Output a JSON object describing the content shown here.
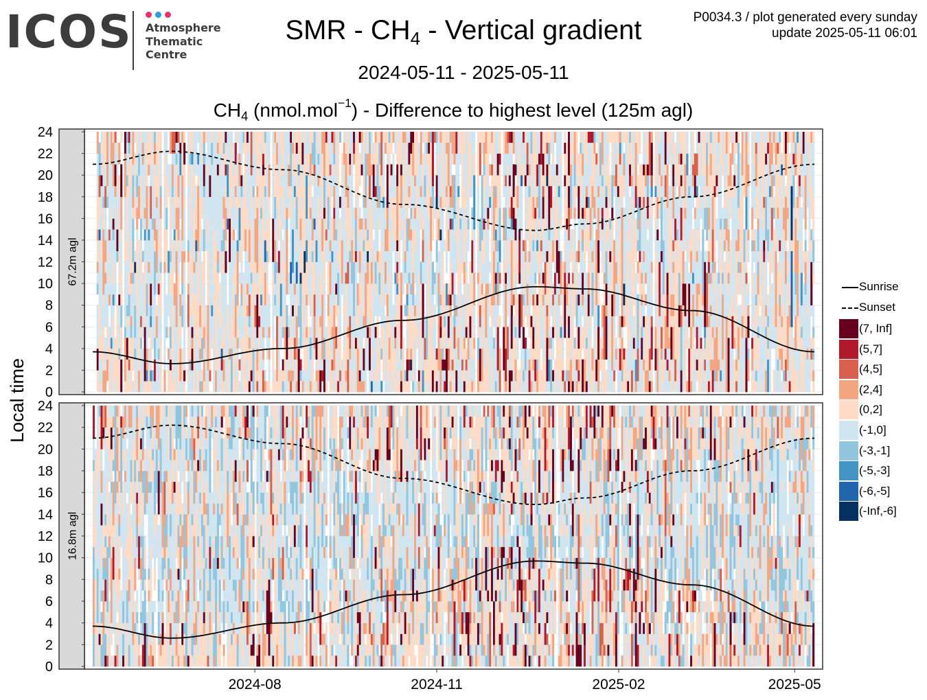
{
  "logo": {
    "text": "ICOS",
    "lines": [
      "Atmosphere",
      "Thematic",
      "Centre"
    ],
    "dot_colors": [
      "#e8336b",
      "#2d9be0",
      "#e8336b"
    ]
  },
  "header": {
    "title_main": "SMR - CH",
    "title_sub": "4",
    "title_rest": " - Vertical gradient",
    "date_range": "2024-05-11 - 2025-05-11",
    "metric_prefix": "CH",
    "metric_sub": "4",
    "metric_unit": " (nmol.mol",
    "metric_sup": "−1",
    "metric_rest": ") - Difference to highest level (125m agl)",
    "meta_line1": "P0034.3 / plot generated every sunday",
    "meta_line2": "update  2025-05-11 06:01"
  },
  "chart_data": {
    "type": "heatmap",
    "ylabel": "Local time",
    "ylim": [
      0,
      24
    ],
    "yticks": [
      0,
      2,
      4,
      6,
      8,
      10,
      12,
      14,
      16,
      18,
      20,
      22,
      24
    ],
    "xlim": [
      "2024-05-11",
      "2025-05-11"
    ],
    "xticks": [
      "2024-08",
      "2024-11",
      "2025-02",
      "2025-05"
    ],
    "panels": [
      {
        "label": "67.2m agl"
      },
      {
        "label": "16.8m agl"
      }
    ],
    "color_classes": [
      {
        "label": "(7, Inf]",
        "color": "#67001f"
      },
      {
        "label": "(5,7]",
        "color": "#b2182b"
      },
      {
        "label": "(4,5]",
        "color": "#d6604d"
      },
      {
        "label": "(2,4]",
        "color": "#f4a582"
      },
      {
        "label": "(0,2]",
        "color": "#fddbc7"
      },
      {
        "label": "(-1,0]",
        "color": "#d1e5f0"
      },
      {
        "label": "(-3,-1]",
        "color": "#92c5de"
      },
      {
        "label": "(-5,-3]",
        "color": "#4393c3"
      },
      {
        "label": "(-6,-5]",
        "color": "#2166ac"
      },
      {
        "label": "(-Inf,-6]",
        "color": "#053061"
      }
    ],
    "lines": [
      {
        "name": "Sunrise",
        "style": "solid",
        "points": [
          [
            "2024-05-11",
            3.7
          ],
          [
            "2024-06-20",
            2.6
          ],
          [
            "2024-08-15",
            4.0
          ],
          [
            "2024-10-15",
            6.6
          ],
          [
            "2024-12-21",
            9.7
          ],
          [
            "2025-01-15",
            9.5
          ],
          [
            "2025-03-10",
            7.5
          ],
          [
            "2025-05-11",
            3.7
          ]
        ]
      },
      {
        "name": "Sunset",
        "style": "dashed",
        "points": [
          [
            "2024-05-11",
            21.0
          ],
          [
            "2024-06-20",
            22.2
          ],
          [
            "2024-08-15",
            20.5
          ],
          [
            "2024-10-15",
            17.3
          ],
          [
            "2024-12-21",
            14.9
          ],
          [
            "2025-01-15",
            15.5
          ],
          [
            "2025-03-10",
            18.0
          ],
          [
            "2025-05-11",
            21.0
          ]
        ]
      }
    ]
  }
}
